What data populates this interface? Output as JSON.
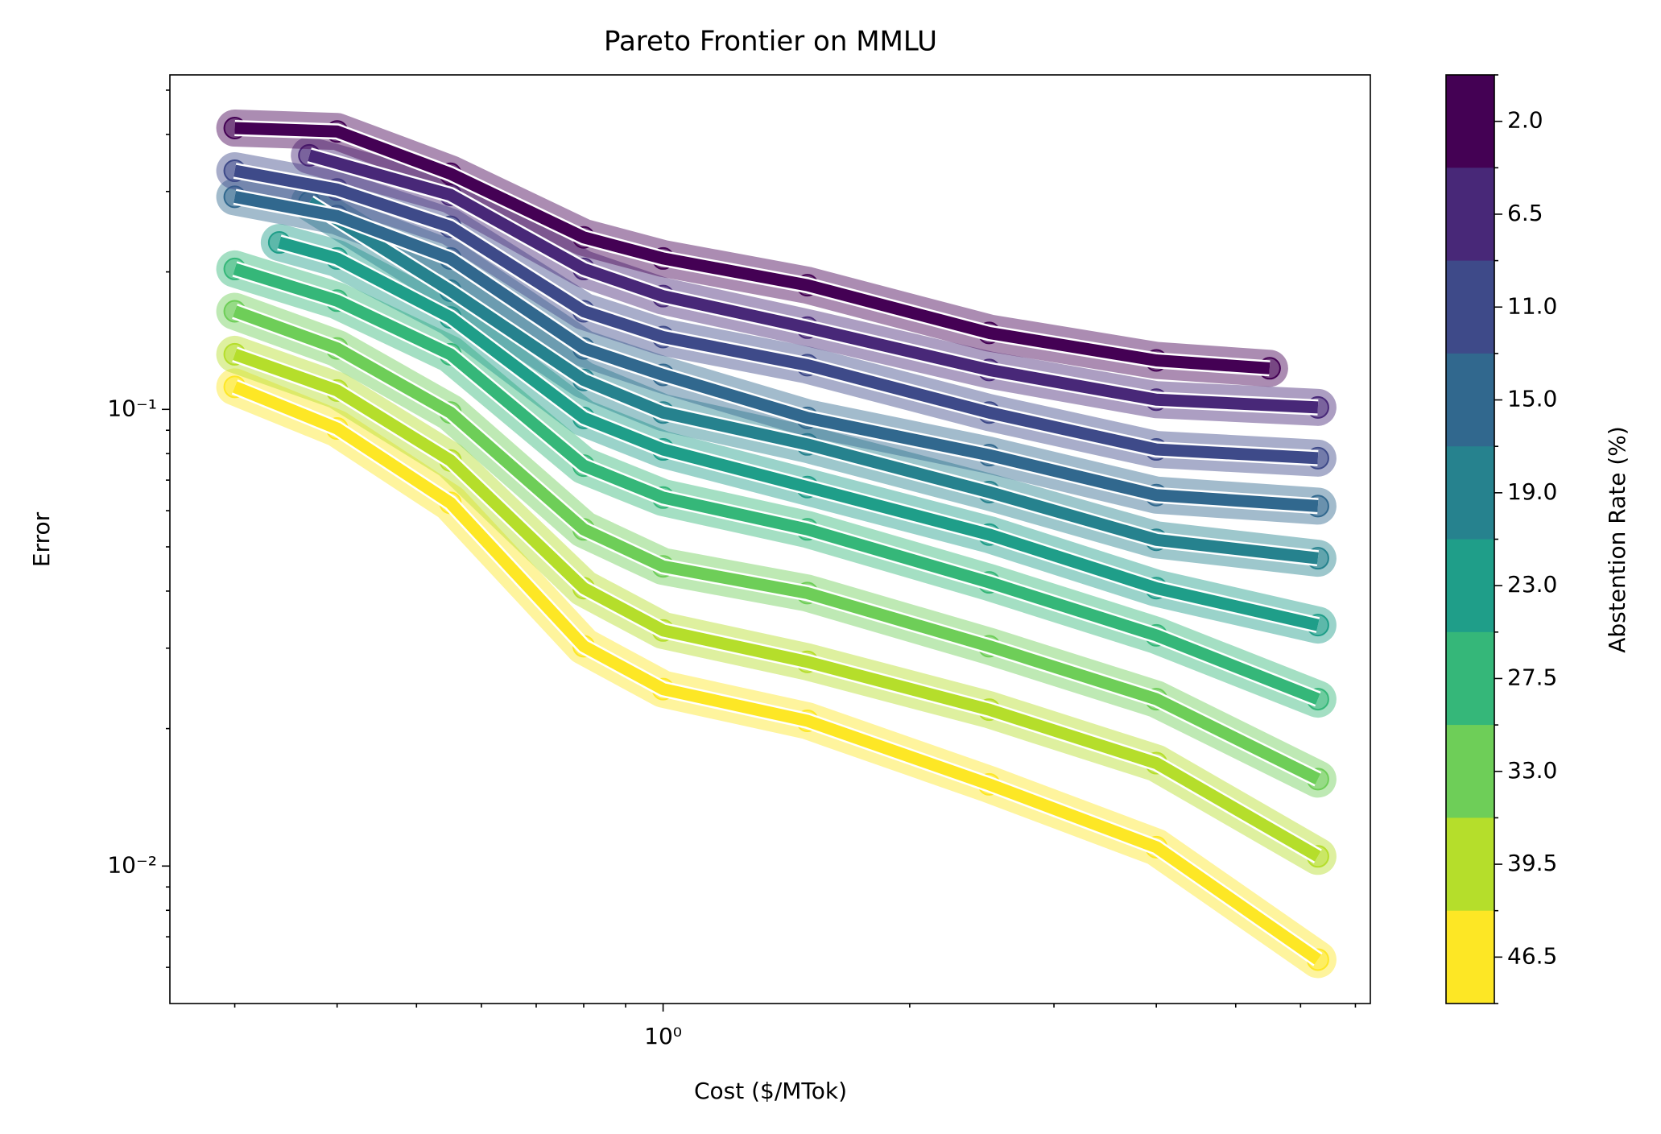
{
  "chart_data": {
    "type": "line",
    "title": "Pareto Frontier on MMLU",
    "x_label": "Cost ($/MTok)",
    "y_label": "Error",
    "xscale": "log",
    "yscale": "log",
    "xlim": [
      0.25,
      7.3
    ],
    "ylim": [
      0.005,
      0.54
    ],
    "xticks": [
      {
        "value": 1,
        "label": "10⁰"
      }
    ],
    "yticks": [
      {
        "value": 0.01,
        "label": "10⁻²"
      },
      {
        "value": 0.1,
        "label": "10⁻¹"
      }
    ],
    "xminor": [
      0.3,
      0.4,
      0.5,
      0.6,
      0.7,
      0.8,
      0.9,
      2,
      3,
      4,
      5,
      6,
      7
    ],
    "yminor": [
      0.006,
      0.007,
      0.008,
      0.009,
      0.02,
      0.03,
      0.04,
      0.05,
      0.06,
      0.07,
      0.08,
      0.09,
      0.2,
      0.3,
      0.4,
      0.5
    ],
    "series": [
      {
        "color": "#440154",
        "x": [
          0.3,
          0.4,
          0.55,
          0.8,
          1,
          1.5,
          2.5,
          4,
          5.5
        ],
        "values": [
          0.413,
          0.406,
          0.328,
          0.238,
          0.214,
          0.187,
          0.147,
          0.128,
          0.123
        ]
      },
      {
        "color": "#482878",
        "x": [
          0.37,
          0.55,
          0.8,
          1,
          1.5,
          2.5,
          4,
          6.3
        ],
        "values": [
          0.36,
          0.295,
          0.203,
          0.177,
          0.151,
          0.122,
          0.105,
          0.101
        ]
      },
      {
        "color": "#3e4a89",
        "x": [
          0.3,
          0.4,
          0.55,
          0.8,
          1,
          1.5,
          2.5,
          4,
          6.3
        ],
        "values": [
          0.333,
          0.303,
          0.251,
          0.164,
          0.144,
          0.125,
          0.0984,
          0.0817,
          0.0782
        ]
      },
      {
        "color": "#31688e",
        "x": [
          0.3,
          0.4,
          0.55,
          0.8,
          1,
          1.5,
          2.5,
          4,
          6.3
        ],
        "values": [
          0.292,
          0.265,
          0.214,
          0.136,
          0.119,
          0.0958,
          0.0794,
          0.0649,
          0.0614
        ]
      },
      {
        "color": "#26828e",
        "x": [
          0.37,
          0.55,
          0.8,
          1,
          1.5,
          2.5,
          4,
          6.3
        ],
        "values": [
          0.284,
          0.182,
          0.116,
          0.0984,
          0.0838,
          0.0659,
          0.0518,
          0.0472
        ]
      },
      {
        "color": "#1f9e89",
        "x": [
          0.34,
          0.4,
          0.55,
          0.8,
          1,
          1.5,
          2.5,
          4,
          6.3
        ],
        "values": [
          0.232,
          0.214,
          0.159,
          0.0958,
          0.0817,
          0.0676,
          0.0532,
          0.0406,
          0.0337
        ]
      },
      {
        "color": "#35b779",
        "x": [
          0.3,
          0.4,
          0.55,
          0.8,
          1,
          1.5,
          2.5,
          4,
          6.3
        ],
        "values": [
          0.203,
          0.173,
          0.132,
          0.0753,
          0.0641,
          0.0546,
          0.0418,
          0.032,
          0.0232
        ]
      },
      {
        "color": "#6ece58",
        "x": [
          0.3,
          0.4,
          0.55,
          0.8,
          1,
          1.5,
          2.5,
          4,
          6.3
        ],
        "values": [
          0.164,
          0.136,
          0.0984,
          0.0546,
          0.0453,
          0.0396,
          0.0303,
          0.0232,
          0.0155
        ]
      },
      {
        "color": "#b5de2b",
        "x": [
          0.3,
          0.4,
          0.55,
          0.8,
          1,
          1.5,
          2.5,
          4,
          6.3
        ],
        "values": [
          0.132,
          0.11,
          0.0773,
          0.0406,
          0.0328,
          0.028,
          0.022,
          0.0168,
          0.0105
        ]
      },
      {
        "color": "#fde725",
        "x": [
          0.3,
          0.4,
          0.55,
          0.8,
          1,
          1.5,
          2.5,
          4,
          6.3
        ],
        "values": [
          0.112,
          0.0908,
          0.0624,
          0.0303,
          0.0244,
          0.0208,
          0.0151,
          0.011,
          0.00624
        ]
      }
    ],
    "colorbar": {
      "label": "Abstention Rate (%)",
      "colors": [
        "#440154",
        "#482878",
        "#3e4a89",
        "#31688e",
        "#26828e",
        "#1f9e89",
        "#35b779",
        "#6ece58",
        "#b5de2b",
        "#fde725"
      ],
      "ticks": [
        {
          "value": 2,
          "label": "2.0"
        },
        {
          "value": 6.5,
          "label": "6.5"
        },
        {
          "value": 11,
          "label": "11.0"
        },
        {
          "value": 15,
          "label": "15.0"
        },
        {
          "value": 19,
          "label": "19.0"
        },
        {
          "value": 23,
          "label": "23.0"
        },
        {
          "value": 27.5,
          "label": "27.5"
        },
        {
          "value": 33,
          "label": "33.0"
        },
        {
          "value": 39.5,
          "label": "39.5"
        },
        {
          "value": 46.5,
          "label": "46.5"
        }
      ]
    }
  }
}
